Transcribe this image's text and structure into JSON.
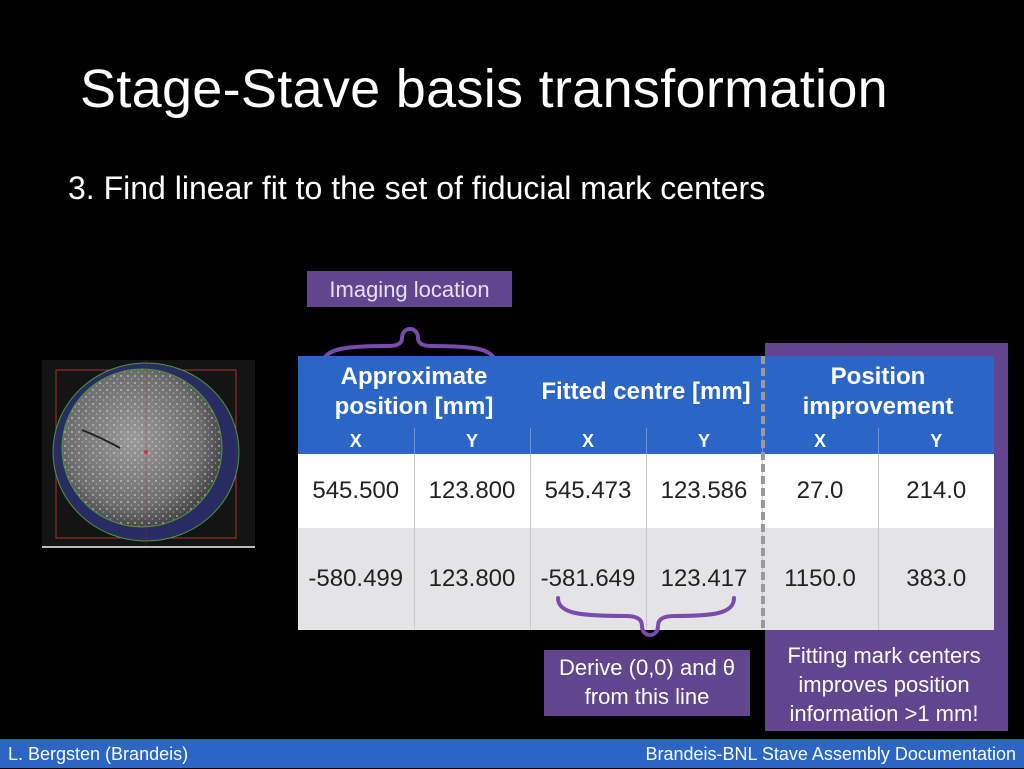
{
  "slide": {
    "title": "Stage-Stave basis transformation",
    "subtitle": "3. Find linear fit to the set of fiducial mark centers"
  },
  "callouts": {
    "imaging_location": "Imaging location",
    "derive": "Derive (0,0) and θ from this line",
    "fitting": "Fitting mark centers improves position information >1 mm!"
  },
  "table": {
    "groups": [
      "Approximate position [mm]",
      "Fitted centre [mm]",
      "Position improvement"
    ],
    "subheaders": [
      "X",
      "Y",
      "X",
      "Y",
      "X",
      "Y"
    ],
    "rows": [
      [
        "545.500",
        "123.800",
        "545.473",
        "123.586",
        "27.0",
        "214.0"
      ],
      [
        "-580.499",
        "123.800",
        "-581.649",
        "123.417",
        "1150.0",
        "383.0"
      ]
    ]
  },
  "footer": {
    "left": "L. Bergsten (Brandeis)",
    "right": "Brandeis-BNL Stave Assembly Documentation"
  },
  "colors": {
    "background": "#000000",
    "header_blue": "#2b66c6",
    "callout_purple": "#61468f",
    "row_alt": "#e4e4e6"
  }
}
